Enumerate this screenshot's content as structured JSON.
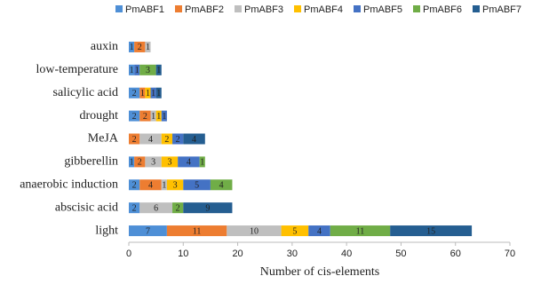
{
  "chart_data": {
    "type": "stacked-barh",
    "x_label": "Number of cis-elements",
    "categories": [
      "auxin",
      "low-temperature",
      "salicylic acid",
      "drought",
      "MeJA",
      "gibberellin",
      "anaerobic induction",
      "abscisic acid",
      "light"
    ],
    "series": [
      {
        "name": "PmABF1",
        "color": "#4e8fd6",
        "values": [
          1,
          1,
          2,
          2,
          0,
          1,
          2,
          2,
          7
        ]
      },
      {
        "name": "PmABF2",
        "color": "#ed7d31",
        "values": [
          2,
          0,
          1,
          2,
          2,
          2,
          4,
          0,
          11
        ]
      },
      {
        "name": "PmABF3",
        "color": "#bfbfbf",
        "values": [
          1,
          0,
          0,
          1,
          4,
          3,
          1,
          6,
          10
        ]
      },
      {
        "name": "PmABF4",
        "color": "#ffc000",
        "values": [
          0,
          0,
          1,
          1,
          2,
          3,
          3,
          0,
          5
        ]
      },
      {
        "name": "PmABF5",
        "color": "#4472c4",
        "values": [
          0,
          1,
          1,
          1,
          2,
          4,
          5,
          0,
          4
        ]
      },
      {
        "name": "PmABF6",
        "color": "#70ad47",
        "values": [
          0,
          3,
          0,
          0,
          0,
          1,
          4,
          2,
          11
        ]
      },
      {
        "name": "PmABF7",
        "color": "#255e91",
        "values": [
          0,
          1,
          1,
          0,
          4,
          0,
          0,
          9,
          15
        ]
      }
    ],
    "xlim": [
      0,
      70
    ],
    "xticks": [
      0,
      10,
      20,
      30,
      40,
      50,
      60,
      70
    ],
    "legend": "top"
  }
}
